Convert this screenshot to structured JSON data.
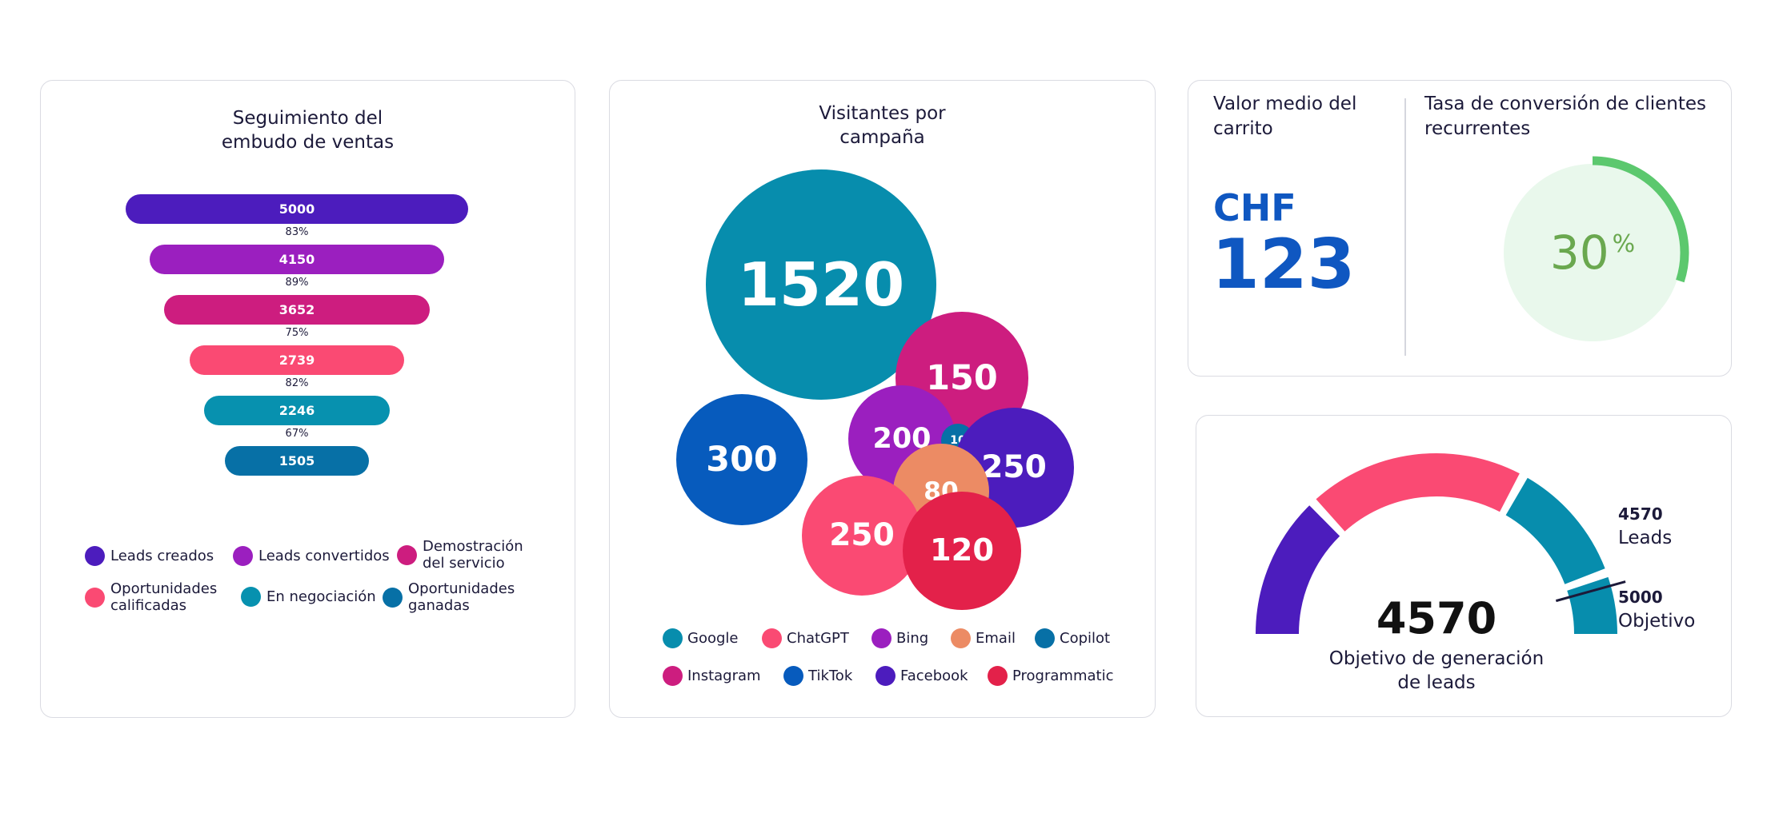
{
  "colors": {
    "purple_dark": "#4c1cbd",
    "purple": "#9b1fbf",
    "magenta": "#cd1d7f",
    "pink": "#fa4a73",
    "teal": "#0791af",
    "blue_teal": "#0770a6",
    "cyan": "#078dad",
    "blue": "#075bbd",
    "orange": "#ec8b64",
    "red": "#e3214a",
    "green": "#5cc86e",
    "green_light": "#e9f8ec"
  },
  "funnel": {
    "title": "Seguimiento del\nembudo de ventas",
    "stages": [
      {
        "value": "5000",
        "color": "#4c1cbd"
      },
      {
        "value": "4150",
        "color": "#9b1fbf"
      },
      {
        "value": "3652",
        "color": "#cd1d7f"
      },
      {
        "value": "2739",
        "color": "#fa4a73"
      },
      {
        "value": "2246",
        "color": "#0791af"
      },
      {
        "value": "1505",
        "color": "#0770a6"
      }
    ],
    "percents": [
      "83%",
      "89%",
      "75%",
      "82%",
      "67%"
    ],
    "legend": [
      {
        "label": "Leads creados",
        "color": "#4c1cbd"
      },
      {
        "label": "Leads convertidos",
        "color": "#9b1fbf"
      },
      {
        "label": "Demostración\ndel servicio",
        "color": "#cd1d7f"
      },
      {
        "label": "Oportunidades\ncalificadas",
        "color": "#fa4a73"
      },
      {
        "label": "En negociación",
        "color": "#0791af"
      },
      {
        "label": "Oportunidades\nganadas",
        "color": "#0770a6"
      }
    ]
  },
  "bubbles": {
    "title": "Visitantes por\ncampaña",
    "items": [
      {
        "value": "1520",
        "color": "#078dad"
      },
      {
        "value": "150",
        "color": "#cd1d7f"
      },
      {
        "value": "300",
        "color": "#075bbd"
      },
      {
        "value": "200",
        "color": "#9b1fbf"
      },
      {
        "value": "10",
        "color": "#0770a6"
      },
      {
        "value": "250",
        "color": "#4c1cbd"
      },
      {
        "value": "80",
        "color": "#ec8b64"
      },
      {
        "value": "250",
        "color": "#fa4a73"
      },
      {
        "value": "120",
        "color": "#e3214a"
      }
    ],
    "legend": [
      {
        "label": "Google",
        "color": "#078dad"
      },
      {
        "label": "ChatGPT",
        "color": "#fa4a73"
      },
      {
        "label": "Bing",
        "color": "#9b1fbf"
      },
      {
        "label": "Email",
        "color": "#ec8b64"
      },
      {
        "label": "Copilot",
        "color": "#0770a6"
      },
      {
        "label": "Instagram",
        "color": "#cd1d7f"
      },
      {
        "label": "TikTok",
        "color": "#075bbd"
      },
      {
        "label": "Facebook",
        "color": "#4c1cbd"
      },
      {
        "label": "Programmatic",
        "color": "#e3214a"
      }
    ]
  },
  "kpi": {
    "cart_title": "Valor medio del\ncarrito",
    "currency": "CHF",
    "cart_value": "123",
    "conversion_title": "Tasa de conversión de clientes\nrecurrentes",
    "conversion_value": "30",
    "conversion_unit": "%",
    "conversion_fraction": 0.3
  },
  "gauge": {
    "value": "4570",
    "caption": "Objetivo de generación\nde leads",
    "current_value": "4570",
    "current_label": "Leads",
    "target_value": "5000",
    "target_label": "Objetivo",
    "current_fraction": 0.914,
    "segments": [
      {
        "from": 0,
        "to": 0.26,
        "color": "#4c1cbd"
      },
      {
        "from": 0.26,
        "to": 0.66,
        "color": "#fa4a73"
      },
      {
        "from": 0.66,
        "to": 0.89,
        "color": "#078dad"
      },
      {
        "from": 0.89,
        "to": 1,
        "color": "#078dad"
      }
    ]
  },
  "chart_data": [
    {
      "type": "bar",
      "title": "Seguimiento del\nembudo de ventas",
      "categories": [
        "Leads creados",
        "Leads convertidos",
        "Demostración del servicio",
        "Oportunidades calificadas",
        "En negociación",
        "Oportunidades ganadas"
      ],
      "values": [
        5000,
        4150,
        3652,
        2739,
        2246,
        1505
      ],
      "conversion_rates": [
        "83%",
        "89%",
        "75%",
        "82%",
        "67%"
      ]
    },
    {
      "type": "scatter",
      "title": "Visitantes por\ncampaña",
      "categories": [
        "Google",
        "Instagram",
        "TikTok",
        "Bing",
        "Copilot",
        "Facebook",
        "Email",
        "ChatGPT",
        "Programmatic"
      ],
      "values": [
        1520,
        150,
        300,
        200,
        10,
        250,
        80,
        250,
        120
      ]
    }
  ]
}
